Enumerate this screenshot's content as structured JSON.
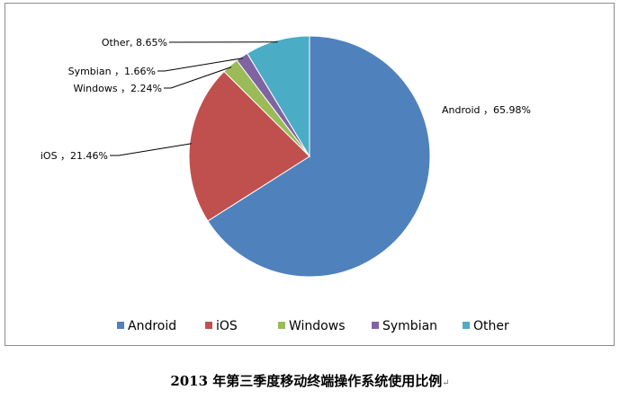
{
  "chart_data": {
    "type": "pie",
    "categories": [
      "Android",
      "iOS",
      "Windows",
      "Symbian",
      "Other"
    ],
    "values": [
      65.98,
      21.46,
      2.24,
      1.66,
      8.65
    ],
    "data_labels": [
      "Android ，65.98%",
      "iOS ，21.46%",
      "Windows ，2.24%",
      "Symbian ，1.66%",
      "Other, 8.65%"
    ],
    "colors": [
      "#4F81BD",
      "#C0504D",
      "#9BBB59",
      "#8064A2",
      "#4BACC6"
    ],
    "legend_placement": "bottom",
    "start_angle": "top",
    "direction": "clockwise"
  },
  "caption": "2013 年第三季度移动终端操作系统使用比例",
  "caption_mark": "↵"
}
